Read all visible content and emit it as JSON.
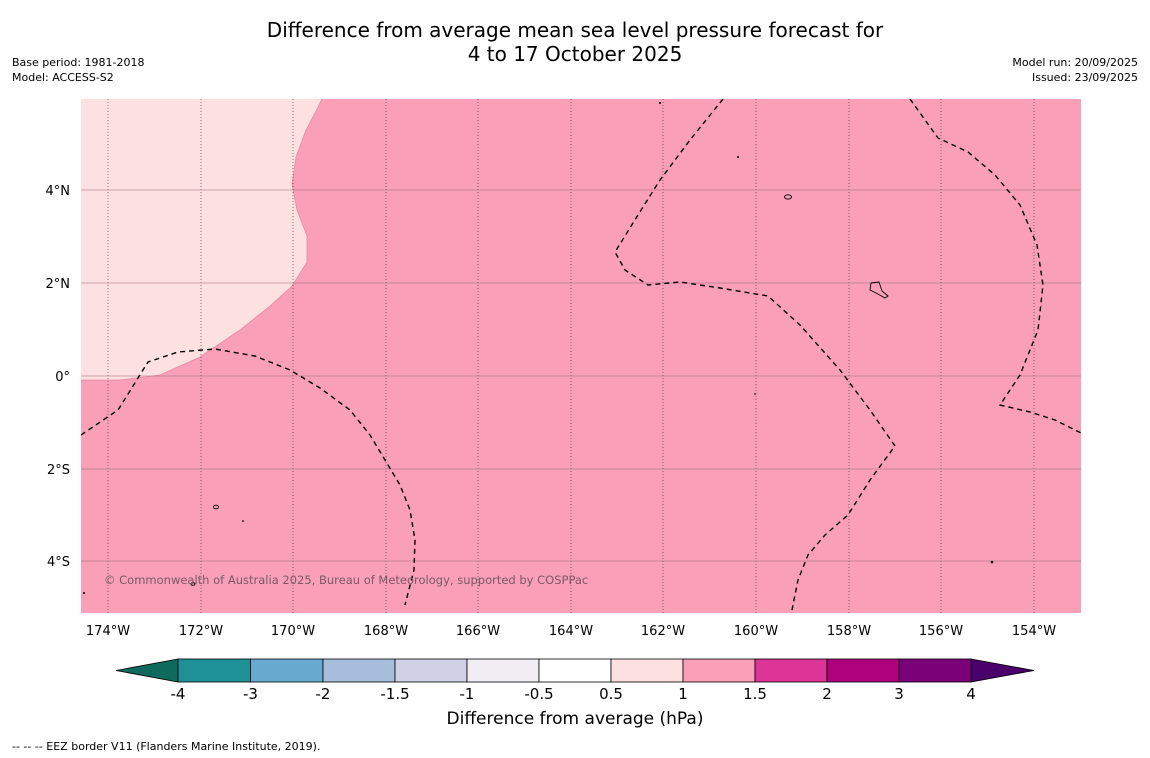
{
  "title": {
    "line1": "Difference from average mean sea level pressure forecast for",
    "line2": "4 to 17 October 2025"
  },
  "meta_left": {
    "base_period": "Base period: 1981-2018",
    "model": "Model: ACCESS-S2"
  },
  "meta_right": {
    "model_run": "Model run: 20/09/2025",
    "issued": "Issued: 23/09/2025"
  },
  "map": {
    "x_ticks": [
      "174°W",
      "172°W",
      "170°W",
      "168°W",
      "166°W",
      "164°W",
      "162°W",
      "160°W",
      "158°W",
      "156°W",
      "154°W"
    ],
    "y_ticks": [
      "4°N",
      "2°N",
      "0°",
      "2°S",
      "4°S"
    ],
    "copyright": "© Commonwealth of Australia 2025, Bureau of Meteorology, supported by COSPPac",
    "colors": {
      "band_0_5_to_1": "#fde0e0",
      "band_1_to_1_5": "#f99fb7"
    }
  },
  "colorbar": {
    "tick_labels": [
      "-4",
      "-3",
      "-2",
      "-1.5",
      "-1",
      "-0.5",
      "0.5",
      "1",
      "1.5",
      "2",
      "3",
      "4"
    ],
    "colors": [
      "#0e6a5c",
      "#1e9197",
      "#67a9cf",
      "#a6bddb",
      "#d0d1e6",
      "#f0eef2",
      "#ffffff",
      "#fde0e0",
      "#f99fb7",
      "#dd3497",
      "#ae017e",
      "#7a0177",
      "#49006a"
    ],
    "label": "Difference from average (hPa)"
  },
  "footnote": "--  --  -- EEZ border V11 (Flanders Marine Institute, 2019)."
}
